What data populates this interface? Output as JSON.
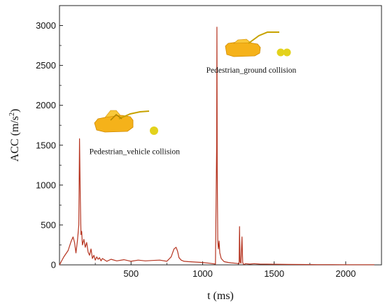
{
  "chart_data": {
    "type": "line",
    "title": "",
    "xlabel": "t (ms)",
    "ylabel_main": "ACC (m/s",
    "ylabel_sup": "2",
    "ylabel_close": ")",
    "xlim": [
      0,
      2250
    ],
    "ylim": [
      0,
      3250
    ],
    "xticks": [
      500,
      1000,
      1500,
      2000
    ],
    "yticks": [
      0,
      500,
      1000,
      1500,
      2000,
      2500,
      3000
    ],
    "grid": false,
    "line_color": "#b5331f",
    "annotations": [
      {
        "text": "Pedestrian_vehicle collision",
        "x": 525,
        "y": 1390
      },
      {
        "text": "Pedestrian_ground collision",
        "x": 1340,
        "y": 2410
      }
    ],
    "series": [
      {
        "x": [
          0,
          30,
          60,
          80,
          95,
          105,
          115,
          125,
          135,
          140,
          145,
          150,
          155,
          160,
          170,
          180,
          190,
          200,
          210,
          220,
          230,
          240,
          250,
          260,
          270,
          280,
          290,
          300,
          330,
          360,
          400,
          450,
          500,
          550,
          600,
          650,
          700,
          750,
          780,
          800,
          815,
          825,
          835,
          850,
          870,
          900,
          950,
          1000,
          1050,
          1090,
          1098,
          1100,
          1102,
          1106,
          1110,
          1115,
          1120,
          1130,
          1150,
          1180,
          1200,
          1230,
          1255,
          1258,
          1262,
          1268,
          1275,
          1280,
          1285,
          1290,
          1300,
          1330,
          1360,
          1400,
          1500,
          1600,
          1700,
          1800,
          1900,
          2000,
          2100,
          2200
        ],
        "y": [
          0,
          100,
          180,
          290,
          350,
          280,
          150,
          300,
          500,
          1580,
          900,
          380,
          420,
          250,
          320,
          220,
          280,
          160,
          120,
          200,
          80,
          120,
          60,
          100,
          70,
          90,
          50,
          80,
          45,
          70,
          50,
          65,
          45,
          60,
          50,
          55,
          60,
          45,
          100,
          200,
          220,
          170,
          90,
          60,
          45,
          40,
          35,
          30,
          20,
          10,
          1500,
          2980,
          1200,
          300,
          200,
          300,
          150,
          80,
          40,
          30,
          25,
          20,
          15,
          480,
          40,
          20,
          350,
          30,
          10,
          5,
          15,
          10,
          15,
          10,
          8,
          5,
          4,
          3,
          3,
          2,
          2,
          2
        ]
      }
    ]
  }
}
